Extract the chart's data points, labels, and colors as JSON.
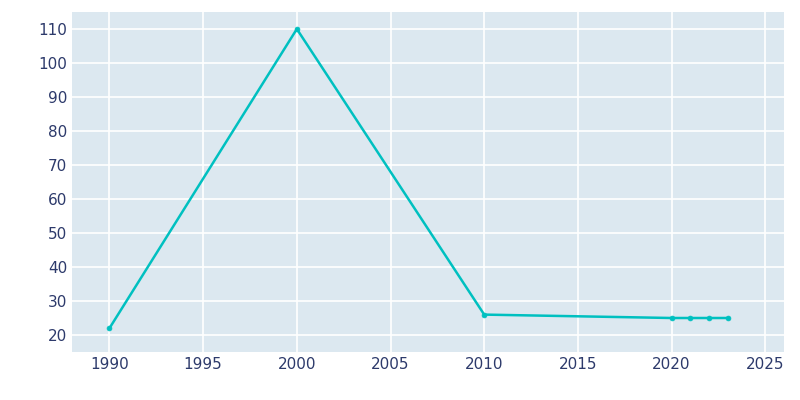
{
  "years": [
    1990,
    2000,
    2010,
    2020,
    2021,
    2022,
    2023
  ],
  "population": [
    22,
    110,
    26,
    25,
    25,
    25,
    25
  ],
  "line_color": "#00C0C0",
  "marker_color": "#00C0C0",
  "bg_color": "#ffffff",
  "plot_bg_color": "#dce8f0",
  "grid_color": "#ffffff",
  "xlim": [
    1988,
    2026
  ],
  "ylim": [
    15,
    115
  ],
  "xticks": [
    1990,
    1995,
    2000,
    2005,
    2010,
    2015,
    2020,
    2025
  ],
  "yticks": [
    20,
    30,
    40,
    50,
    60,
    70,
    80,
    90,
    100,
    110
  ],
  "tick_color": "#2d3a6b",
  "tick_fontsize": 11,
  "linewidth": 1.8,
  "markersize": 3.5
}
